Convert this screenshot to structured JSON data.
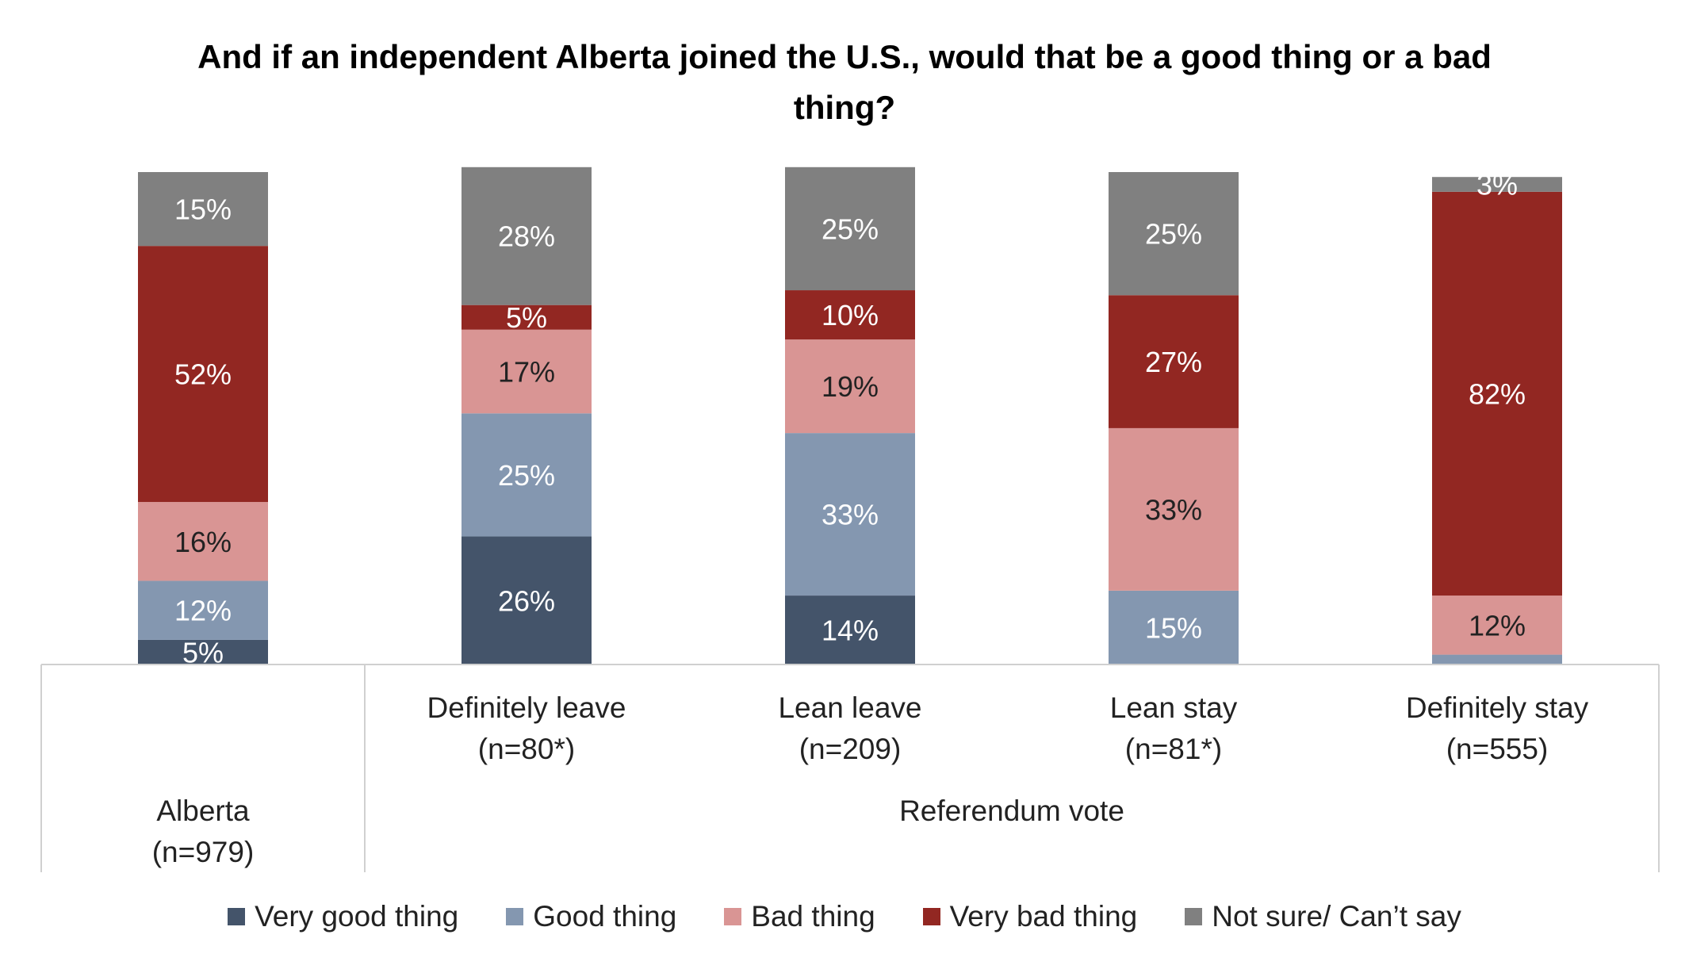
{
  "chart_data": {
    "type": "bar",
    "stacked": true,
    "title": "And if an independent Alberta joined the U.S., would that be a good thing or a bad thing?",
    "groups": [
      {
        "label": "",
        "categories": [
          "Alberta (n=979)"
        ]
      },
      {
        "label": "Referendum vote",
        "categories": [
          "Definitely leave (n=80*)",
          "Lean leave (n=209)",
          "Lean stay (n=81*)",
          "Definitely stay (n=555)"
        ]
      }
    ],
    "categories": [
      "Alberta (n=979)",
      "Definitely leave (n=80*)",
      "Lean leave (n=209)",
      "Lean stay (n=81*)",
      "Definitely stay (n=555)"
    ],
    "category_lines": [
      [
        "Alberta",
        "(n=979)"
      ],
      [
        "Definitely leave",
        "(n=80*)"
      ],
      [
        "Lean leave",
        "(n=209)"
      ],
      [
        "Lean stay",
        "(n=81*)"
      ],
      [
        "Definitely stay",
        "(n=555)"
      ]
    ],
    "series": [
      {
        "name": "Very good thing",
        "color": "#44546A",
        "values": [
          5,
          26,
          14,
          0,
          0
        ],
        "labels": [
          "5%",
          "26%",
          "14%",
          "",
          ""
        ]
      },
      {
        "name": "Good thing",
        "color": "#8497B0",
        "values": [
          12,
          25,
          33,
          15,
          2
        ],
        "labels": [
          "12%",
          "25%",
          "33%",
          "15%",
          ""
        ]
      },
      {
        "name": "Bad thing",
        "color": "#D99594",
        "values": [
          16,
          17,
          19,
          33,
          12
        ],
        "labels": [
          "16%",
          "17%",
          "19%",
          "33%",
          "12%"
        ]
      },
      {
        "name": "Very bad thing",
        "color": "#922722",
        "values": [
          52,
          5,
          10,
          27,
          82
        ],
        "labels": [
          "52%",
          "5%",
          "10%",
          "27%",
          "82%"
        ]
      },
      {
        "name": "Not sure/ Can’t say",
        "color": "#808080",
        "values": [
          15,
          28,
          25,
          25,
          3
        ],
        "labels": [
          "15%",
          "28%",
          "25%",
          "25%",
          "3%"
        ]
      }
    ],
    "label_colors": {
      "Very good thing": "#ffffff",
      "Good thing": "#ffffff",
      "Bad thing": "#222222",
      "Very bad thing": "#ffffff",
      "Not sure/ Can’t say": "#ffffff"
    },
    "ylim": [
      0,
      100
    ],
    "legend_position": "bottom",
    "grid": false
  }
}
